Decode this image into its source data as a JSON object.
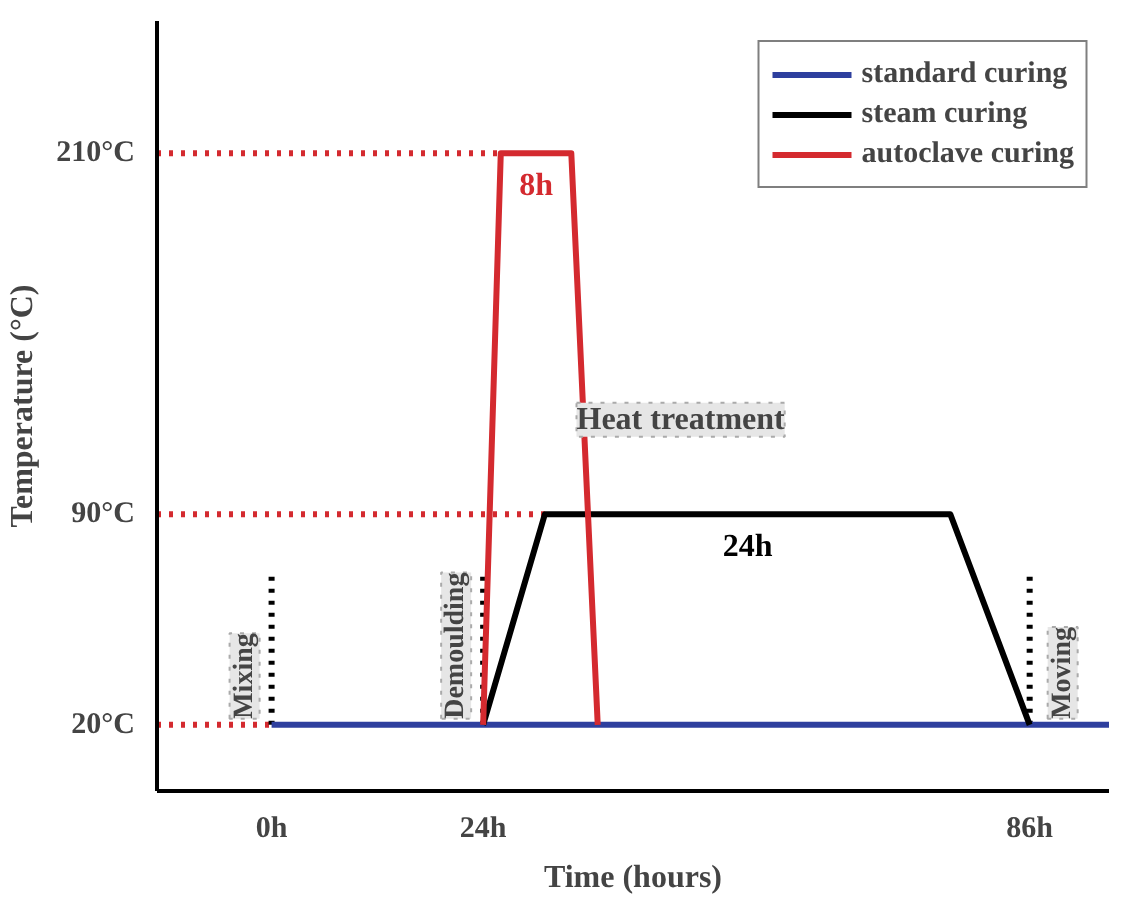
{
  "chart_data": {
    "type": "line",
    "xlabel": "Time (hours)",
    "ylabel": "Temperature (°C)",
    "xlim": [
      -13,
      95
    ],
    "ylim": [
      -2,
      254
    ],
    "xticks": [
      {
        "value": 0,
        "label": "0h"
      },
      {
        "value": 24,
        "label": "24h"
      },
      {
        "value": 86,
        "label": "86h"
      }
    ],
    "yticks": [
      {
        "value": 20,
        "label": "20°C"
      },
      {
        "value": 90,
        "label": "90°C"
      },
      {
        "value": 210,
        "label": "210°C"
      }
    ],
    "series": [
      {
        "name": "standard curing",
        "color": "#2e3f9e",
        "x": [
          0,
          95
        ],
        "values": [
          20,
          20
        ]
      },
      {
        "name": "steam curing",
        "color": "#000000",
        "x": [
          24,
          31,
          77,
          86
        ],
        "values": [
          20,
          90,
          90,
          20
        ]
      },
      {
        "name": "autoclave curing",
        "color": "#d42a2f",
        "x": [
          24,
          26,
          34,
          37
        ],
        "values": [
          20,
          210,
          210,
          20
        ]
      }
    ],
    "ref_lines": [
      {
        "axis": "y",
        "value": 20,
        "color": "#d42a2f",
        "line_style": "dotted"
      },
      {
        "axis": "y",
        "value": 90,
        "color": "#d42a2f",
        "line_style": "dotted"
      },
      {
        "axis": "y",
        "value": 210,
        "color": "#d42a2f",
        "line_style": "dotted"
      },
      {
        "axis": "x",
        "value": 0,
        "label": "Mixing",
        "color": "#000000",
        "line_style": "dotted"
      },
      {
        "axis": "x",
        "value": 24,
        "label": "Demoulding",
        "color": "#000000",
        "line_style": "dotted"
      },
      {
        "axis": "x",
        "value": 86,
        "label": "Moving",
        "color": "#000000",
        "line_style": "dotted"
      }
    ],
    "annotations": [
      {
        "text": "Heat treatment"
      },
      {
        "text": "8h",
        "x": 30,
        "y": 210
      },
      {
        "text": "24h",
        "x": 54,
        "y": 90
      }
    ],
    "grid": false,
    "legend": "top right",
    "line_style": "solid",
    "marker": "none"
  }
}
